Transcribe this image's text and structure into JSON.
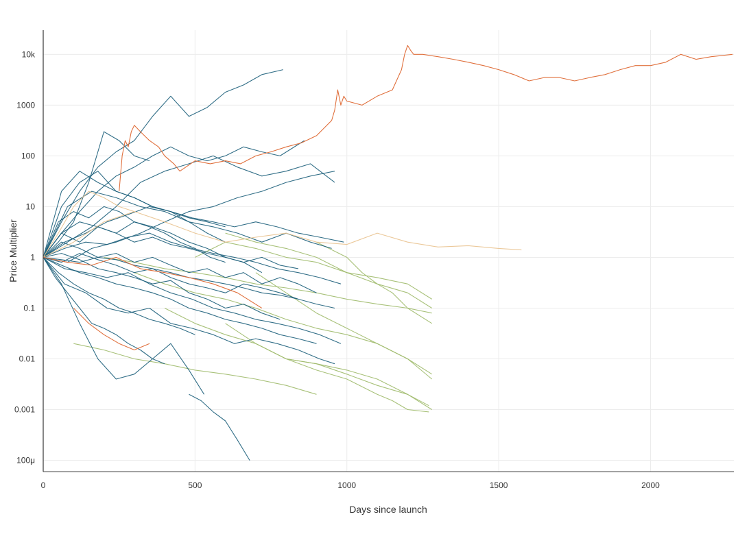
{
  "chart_data": {
    "type": "line",
    "xlabel": "Days since launch",
    "ylabel": "Price Multiplier",
    "xlim": [
      0,
      2270
    ],
    "ylim": [
      6e-05,
      30000
    ],
    "y_scale": "log",
    "grid": true,
    "x_ticks": [
      0,
      500,
      1000,
      1500,
      2000
    ],
    "x_tick_labels": [
      "0",
      "500",
      "1000",
      "1500",
      "2000"
    ],
    "y_ticks": [
      0.0001,
      0.001,
      0.01,
      0.1,
      1,
      10,
      100,
      1000,
      10000
    ],
    "y_tick_labels": [
      "100μ",
      "0.001",
      "0.01",
      "0.1",
      "1",
      "10",
      "100",
      "1000",
      "10k"
    ],
    "colors": {
      "teal": "#1b5e7a",
      "olive": "#9fba6a",
      "orange": "#e0703d",
      "light_orange": "#e9c28e"
    },
    "series": [
      {
        "color": "teal",
        "x": [
          0,
          60,
          120,
          180,
          240,
          300,
          360,
          420,
          480,
          540,
          600,
          660,
          720,
          790
        ],
        "y": [
          1,
          5,
          20,
          60,
          120,
          200,
          600,
          1500,
          600,
          900,
          1800,
          2500,
          4000,
          5000
        ]
      },
      {
        "color": "teal",
        "x": [
          0,
          60,
          120,
          180,
          240,
          300,
          360,
          420,
          480,
          530
        ],
        "y": [
          1,
          0.3,
          0.05,
          0.01,
          0.004,
          0.005,
          0.01,
          0.02,
          0.006,
          0.002
        ]
      },
      {
        "color": "teal",
        "x": [
          480,
          520,
          560,
          600,
          640,
          680
        ],
        "y": [
          0.002,
          0.0015,
          0.0009,
          0.0006,
          0.00025,
          0.0001
        ]
      },
      {
        "color": "teal",
        "x": [
          0,
          50,
          100,
          150,
          200,
          250,
          300,
          350
        ],
        "y": [
          1,
          2,
          5,
          30,
          300,
          200,
          100,
          80
        ]
      },
      {
        "color": "teal",
        "x": [
          0,
          60,
          120,
          180,
          240,
          300,
          360,
          420,
          480,
          540,
          600,
          660,
          720,
          780,
          860
        ],
        "y": [
          1,
          3,
          8,
          20,
          40,
          60,
          100,
          150,
          100,
          80,
          100,
          150,
          120,
          100,
          200
        ]
      },
      {
        "color": "teal",
        "x": [
          0,
          80,
          160,
          240,
          320,
          400,
          480,
          560,
          640,
          720,
          800,
          880,
          960
        ],
        "y": [
          1,
          2,
          4,
          10,
          30,
          50,
          70,
          100,
          60,
          40,
          50,
          70,
          30
        ]
      },
      {
        "color": "teal",
        "x": [
          0,
          80,
          160,
          240,
          320,
          400,
          480,
          560,
          640,
          720,
          800,
          880,
          960
        ],
        "y": [
          1,
          0.8,
          1.5,
          2,
          3,
          5,
          8,
          10,
          15,
          20,
          30,
          40,
          50
        ]
      },
      {
        "color": "teal",
        "x": [
          0,
          60,
          120,
          180,
          240,
          300,
          360,
          420,
          480,
          540,
          600
        ],
        "y": [
          1,
          10,
          30,
          50,
          20,
          15,
          10,
          8,
          5,
          3,
          2
        ]
      },
      {
        "color": "teal",
        "x": [
          0,
          70,
          140,
          210,
          280,
          350,
          420,
          490,
          560,
          630,
          700,
          770,
          840,
          910,
          980
        ],
        "y": [
          1,
          1.5,
          2,
          1.8,
          2.5,
          3,
          2,
          1.5,
          1.2,
          1,
          0.8,
          0.6,
          0.5,
          0.4,
          0.3
        ]
      },
      {
        "color": "teal",
        "x": [
          0,
          70,
          140,
          210,
          280,
          350,
          420,
          490,
          560,
          630,
          700,
          770,
          840,
          910,
          980
        ],
        "y": [
          1,
          0.6,
          0.5,
          0.4,
          0.5,
          0.3,
          0.2,
          0.15,
          0.1,
          0.08,
          0.06,
          0.05,
          0.04,
          0.03,
          0.02
        ]
      },
      {
        "color": "teal",
        "x": [
          0,
          70,
          140,
          210,
          280,
          350,
          420,
          490,
          560,
          630,
          700,
          770,
          840,
          910,
          960
        ],
        "y": [
          1,
          0.3,
          0.2,
          0.1,
          0.08,
          0.1,
          0.05,
          0.04,
          0.03,
          0.02,
          0.025,
          0.02,
          0.015,
          0.01,
          0.008
        ]
      },
      {
        "color": "teal",
        "x": [
          0,
          60,
          120,
          180,
          240,
          300,
          360,
          420,
          480,
          540,
          600,
          660,
          720
        ],
        "y": [
          1,
          3,
          2,
          4,
          3,
          5,
          4,
          3,
          2,
          1.5,
          1,
          0.8,
          0.5
        ]
      },
      {
        "color": "teal",
        "x": [
          0,
          60,
          120,
          180,
          240,
          300,
          360,
          420,
          480,
          540,
          600,
          660,
          720,
          780,
          840
        ],
        "y": [
          1,
          0.8,
          1.2,
          0.9,
          0.7,
          0.5,
          0.6,
          0.4,
          0.3,
          0.25,
          0.2,
          0.3,
          0.25,
          0.2,
          0.15
        ]
      },
      {
        "color": "teal",
        "x": [
          0,
          60,
          120,
          180,
          240,
          300,
          360,
          420,
          480,
          540,
          600,
          660,
          720,
          780,
          840,
          900
        ],
        "y": [
          1,
          2,
          1.5,
          1,
          1.2,
          0.8,
          1,
          0.7,
          0.5,
          0.6,
          0.4,
          0.5,
          0.3,
          0.4,
          0.3,
          0.2
        ]
      },
      {
        "color": "teal",
        "x": [
          0,
          50,
          100,
          150,
          200,
          250,
          300,
          350,
          400,
          450,
          500
        ],
        "y": [
          1,
          0.5,
          0.3,
          0.2,
          0.15,
          0.1,
          0.08,
          0.06,
          0.05,
          0.04,
          0.03
        ]
      },
      {
        "color": "teal",
        "x": [
          0,
          50,
          100,
          150,
          200,
          250,
          300,
          350,
          400,
          450,
          500,
          550,
          600
        ],
        "y": [
          1,
          5,
          8,
          6,
          10,
          8,
          5,
          4,
          3,
          2,
          1.5,
          1,
          0.8
        ]
      },
      {
        "color": "teal",
        "x": [
          0,
          60,
          120,
          180,
          240,
          300,
          360,
          420,
          480,
          540,
          600,
          660,
          720,
          780
        ],
        "y": [
          1,
          1.2,
          0.9,
          0.6,
          0.5,
          0.4,
          0.3,
          0.35,
          0.2,
          0.15,
          0.1,
          0.12,
          0.08,
          0.06
        ]
      },
      {
        "color": "teal",
        "x": [
          0,
          60,
          120,
          180,
          240,
          300,
          360,
          420,
          480,
          540,
          600,
          660,
          720,
          780,
          840
        ],
        "y": [
          1,
          3,
          5,
          4,
          3,
          2,
          2.5,
          1.8,
          1.5,
          1.2,
          1,
          0.8,
          1,
          0.7,
          0.6
        ]
      },
      {
        "color": "teal",
        "x": [
          0,
          40,
          80,
          120,
          160,
          200,
          240,
          280,
          320,
          360,
          400
        ],
        "y": [
          1,
          0.4,
          0.2,
          0.1,
          0.05,
          0.04,
          0.03,
          0.02,
          0.015,
          0.01,
          0.008
        ]
      },
      {
        "color": "teal",
        "x": [
          0,
          80,
          160,
          240,
          320,
          400,
          480,
          560,
          640,
          720,
          800,
          880,
          950
        ],
        "y": [
          1,
          10,
          20,
          15,
          10,
          8,
          5,
          4,
          3,
          2,
          3,
          2,
          1.5
        ]
      },
      {
        "color": "teal",
        "x": [
          0,
          60,
          120,
          180,
          240,
          300,
          360,
          420,
          480,
          540,
          600
        ],
        "y": [
          1,
          20,
          50,
          30,
          20,
          15,
          10,
          8,
          6,
          5,
          4
        ]
      },
      {
        "color": "teal",
        "x": [
          0,
          60,
          120,
          180,
          240,
          300,
          360,
          420,
          480,
          540,
          600,
          660,
          720,
          780,
          840,
          900
        ],
        "y": [
          1,
          0.7,
          0.5,
          0.4,
          0.3,
          0.25,
          0.2,
          0.15,
          0.1,
          0.08,
          0.06,
          0.05,
          0.04,
          0.03,
          0.025,
          0.02
        ]
      },
      {
        "color": "teal",
        "x": [
          0,
          70,
          140,
          210,
          280,
          350,
          420,
          490,
          560,
          630,
          700,
          770,
          840,
          910,
          990
        ],
        "y": [
          1,
          2,
          3,
          5,
          7,
          10,
          8,
          6,
          5,
          4,
          5,
          4,
          3,
          2.5,
          2
        ]
      },
      {
        "color": "teal",
        "x": [
          0,
          60,
          120,
          180,
          240,
          300,
          360,
          420,
          480,
          540,
          600,
          660,
          720,
          780,
          840,
          900,
          960
        ],
        "y": [
          1,
          0.9,
          0.8,
          1,
          0.9,
          0.7,
          0.6,
          0.5,
          0.4,
          0.35,
          0.3,
          0.25,
          0.2,
          0.18,
          0.15,
          0.12,
          0.1
        ]
      },
      {
        "color": "olive",
        "x": [
          200,
          300,
          400,
          500,
          600,
          700,
          800,
          900,
          1000,
          1100,
          1200,
          1280
        ],
        "y": [
          1,
          0.8,
          0.6,
          0.5,
          0.4,
          0.3,
          0.25,
          0.2,
          0.15,
          0.12,
          0.1,
          0.08
        ]
      },
      {
        "color": "olive",
        "x": [
          300,
          400,
          500,
          600,
          700,
          800,
          900,
          1000,
          1100,
          1200,
          1280
        ],
        "y": [
          0.5,
          0.3,
          0.2,
          0.15,
          0.1,
          0.06,
          0.04,
          0.03,
          0.02,
          0.01,
          0.005
        ]
      },
      {
        "color": "olive",
        "x": [
          400,
          500,
          600,
          700,
          800,
          900,
          1000,
          1100,
          1200,
          1280
        ],
        "y": [
          0.1,
          0.05,
          0.03,
          0.02,
          0.01,
          0.008,
          0.006,
          0.004,
          0.002,
          0.001
        ]
      },
      {
        "color": "olive",
        "x": [
          500,
          600,
          700,
          800,
          900,
          1000,
          1100,
          1200,
          1280
        ],
        "y": [
          1,
          2,
          1.5,
          1,
          0.8,
          0.5,
          0.4,
          0.3,
          0.15
        ]
      },
      {
        "color": "olive",
        "x": [
          600,
          700,
          800,
          900,
          1000,
          1100,
          1150,
          1200,
          1270
        ],
        "y": [
          0.05,
          0.02,
          0.01,
          0.006,
          0.004,
          0.002,
          0.0015,
          0.001,
          0.0009
        ]
      },
      {
        "color": "olive",
        "x": [
          600,
          700,
          800,
          900,
          1000,
          1100,
          1200,
          1280
        ],
        "y": [
          3,
          2,
          1.5,
          1,
          0.5,
          0.3,
          0.2,
          0.1
        ]
      },
      {
        "color": "olive",
        "x": [
          700,
          800,
          900,
          1000,
          1100,
          1200,
          1280
        ],
        "y": [
          0.5,
          0.2,
          0.08,
          0.04,
          0.02,
          0.01,
          0.004
        ]
      },
      {
        "color": "olive",
        "x": [
          800,
          900,
          1000,
          1100,
          1200,
          1270
        ],
        "y": [
          0.01,
          0.008,
          0.005,
          0.003,
          0.002,
          0.0012
        ]
      },
      {
        "color": "olive",
        "x": [
          900,
          1000,
          1050,
          1100,
          1150,
          1200,
          1280
        ],
        "y": [
          2,
          1,
          0.5,
          0.3,
          0.2,
          0.1,
          0.05
        ]
      },
      {
        "color": "olive",
        "x": [
          100,
          200,
          300,
          400,
          500,
          600,
          700,
          800,
          900
        ],
        "y": [
          0.02,
          0.015,
          0.01,
          0.008,
          0.006,
          0.005,
          0.004,
          0.003,
          0.002
        ]
      },
      {
        "color": "orange",
        "x": [
          250,
          260,
          270,
          280,
          290,
          300,
          320,
          350,
          380,
          400,
          430,
          450,
          500,
          550,
          600,
          650,
          700,
          750,
          800,
          850,
          900,
          950,
          960,
          970,
          980,
          990,
          1000,
          1050,
          1100,
          1150,
          1180,
          1190,
          1200,
          1210,
          1220,
          1250,
          1300,
          1350,
          1400,
          1450,
          1500,
          1550,
          1600,
          1650,
          1700,
          1750,
          1800,
          1850,
          1900,
          1950,
          2000,
          2050,
          2100,
          2150,
          2200,
          2270
        ],
        "y": [
          20,
          100,
          200,
          150,
          300,
          400,
          300,
          200,
          150,
          100,
          70,
          50,
          80,
          70,
          80,
          70,
          100,
          120,
          150,
          180,
          250,
          500,
          800,
          2000,
          1000,
          1500,
          1200,
          1000,
          1500,
          2000,
          5000,
          10000,
          15000,
          12000,
          10000,
          10000,
          9000,
          8000,
          7000,
          6000,
          5000,
          4000,
          3000,
          3500,
          3500,
          3000,
          3500,
          4000,
          5000,
          6000,
          6000,
          7000,
          10000,
          8000,
          9000,
          10000
        ]
      },
      {
        "color": "orange",
        "x": [
          0,
          80,
          160,
          240,
          320,
          400,
          480,
          560,
          640,
          720
        ],
        "y": [
          1,
          0.8,
          0.7,
          1,
          0.6,
          0.5,
          0.4,
          0.3,
          0.2,
          0.1
        ]
      },
      {
        "color": "orange",
        "x": [
          100,
          150,
          200,
          250,
          300,
          350
        ],
        "y": [
          0.1,
          0.05,
          0.03,
          0.02,
          0.015,
          0.02
        ]
      },
      {
        "color": "light_orange",
        "x": [
          0,
          100,
          200,
          300,
          400,
          500,
          600,
          700,
          800,
          900,
          1000,
          1100,
          1200,
          1300,
          1400,
          1500,
          1575
        ],
        "y": [
          1,
          2,
          5,
          8,
          5,
          3,
          2,
          2.5,
          3,
          2,
          1.8,
          3,
          2,
          1.6,
          1.7,
          1.5,
          1.4
        ]
      },
      {
        "color": "light_orange",
        "x": [
          0,
          50,
          100,
          150,
          200,
          250,
          300
        ],
        "y": [
          1,
          3,
          10,
          20,
          15,
          10,
          8
        ]
      }
    ]
  }
}
